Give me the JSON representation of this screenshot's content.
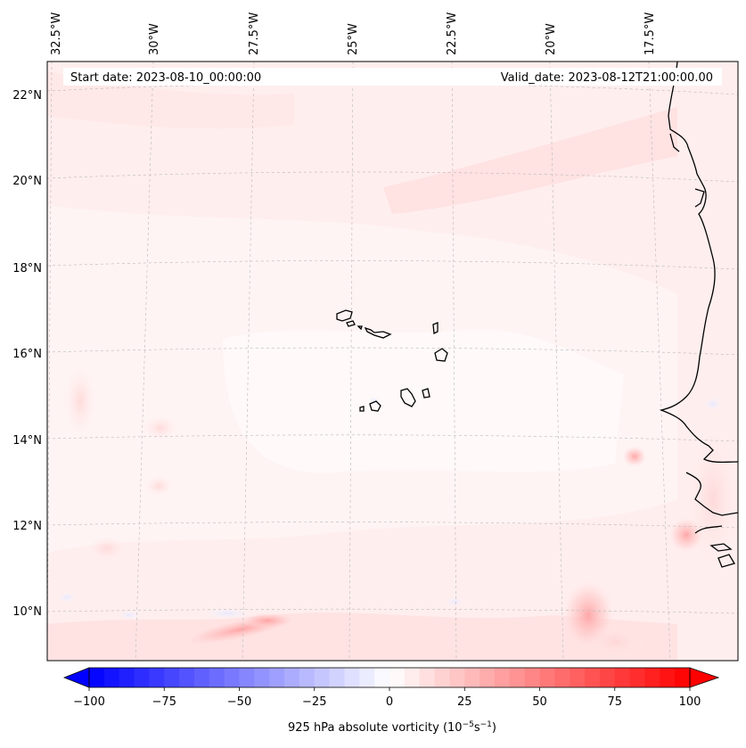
{
  "header": {
    "start_date": "Start date: 2023-08-10_00:00:00",
    "valid_date": "Valid_date: 2023-08-12T21:00:00.00"
  },
  "axes": {
    "lon_ticks": [
      "32.5°W",
      "30°W",
      "27.5°W",
      "25°W",
      "22.5°W",
      "20°W",
      "17.5°W"
    ],
    "lon_values": [
      -32.5,
      -30,
      -27.5,
      -25,
      -22.5,
      -20,
      -17.5
    ],
    "lat_ticks": [
      "22°N",
      "20°N",
      "18°N",
      "16°N",
      "14°N",
      "12°N",
      "10°N"
    ],
    "lat_values": [
      22,
      20,
      18,
      16,
      14,
      12,
      10
    ]
  },
  "colorbar": {
    "label_main": "925 hPa absolute vorticity (10",
    "label_sup1": "−5",
    "label_mid": "s",
    "label_sup2": "−1",
    "label_end": ")",
    "ticks": [
      "−100",
      "−75",
      "−50",
      "−25",
      "0",
      "25",
      "50",
      "75",
      "100"
    ],
    "tick_values": [
      -100,
      -75,
      -50,
      -25,
      0,
      25,
      50,
      75,
      100
    ],
    "range": [
      -100,
      100
    ],
    "cmap": "bwr",
    "color_min": "#0000ff",
    "color_mid": "#ffffff",
    "color_max": "#ff0000"
  },
  "map": {
    "variable": "925 hPa absolute vorticity",
    "coastline_color": "#000000",
    "gridline_color": "#bbbbbb"
  }
}
